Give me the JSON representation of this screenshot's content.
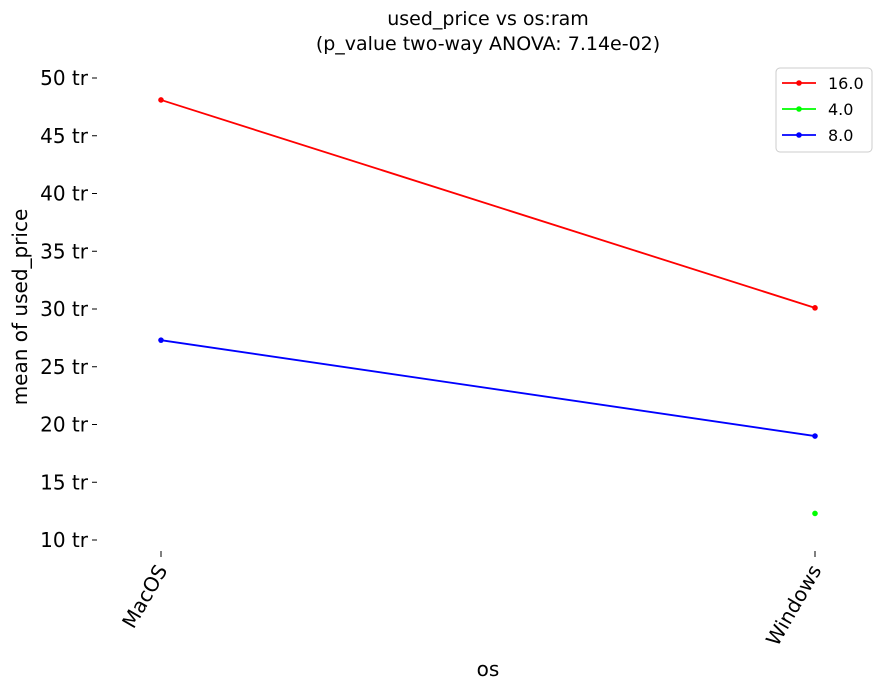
{
  "chart_data": {
    "type": "line",
    "title_line1": "used_price vs os:ram",
    "title_line2": "(p_value two-way ANOVA: 7.14e-02)",
    "xlabel": "os",
    "ylabel": "mean of used_price",
    "categories": [
      "MacOS",
      "Windows"
    ],
    "y_ticks": [
      10,
      15,
      20,
      25,
      30,
      35,
      40,
      45,
      50
    ],
    "y_tick_suffix": " tr",
    "ylim": [
      9,
      51.5
    ],
    "grid": false,
    "legend_position": "top-right",
    "series": [
      {
        "name": "16.0",
        "color": "#ff0000",
        "values": [
          48.1,
          30.1
        ]
      },
      {
        "name": "4.0",
        "color": "#00ff00",
        "values": [
          null,
          12.3
        ]
      },
      {
        "name": "8.0",
        "color": "#0000ff",
        "values": [
          27.3,
          19.0
        ]
      }
    ]
  }
}
